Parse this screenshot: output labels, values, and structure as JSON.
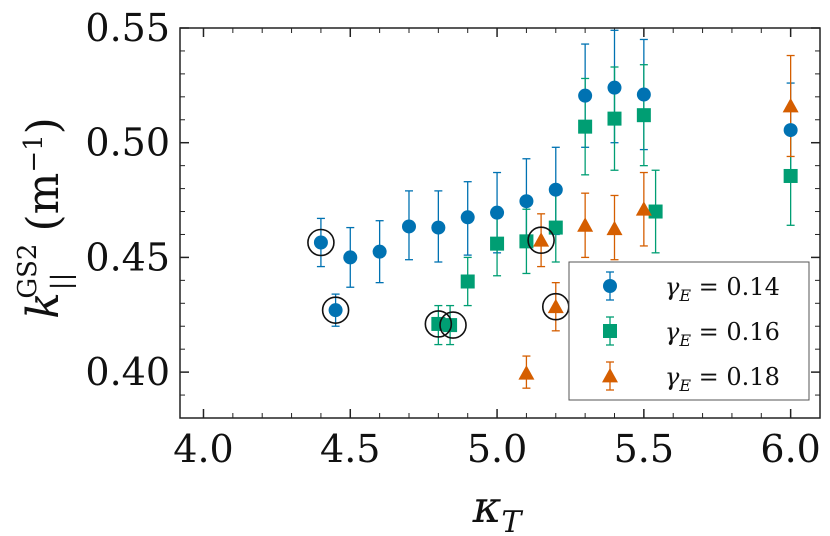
{
  "chart_data": {
    "type": "scatter",
    "title": "",
    "xlabel": {
      "base": "κ",
      "sub": "T"
    },
    "ylabel": {
      "base": "k",
      "sub": "||",
      "sup": "GS2",
      "unit_open": "(m",
      "unit_exp": "−1",
      "unit_close": ")"
    },
    "xlim": [
      3.92,
      6.1
    ],
    "ylim": [
      0.38,
      0.55
    ],
    "xticks": [
      "4.0",
      "4.5",
      "5.0",
      "5.5",
      "6.0"
    ],
    "xtick_values": [
      4.0,
      4.5,
      5.0,
      5.5,
      6.0
    ],
    "yticks": [
      "0.40",
      "0.45",
      "0.50",
      "0.55"
    ],
    "ytick_values": [
      0.4,
      0.45,
      0.5,
      0.55
    ],
    "legend_position": "bottom-right",
    "series": [
      {
        "name": "γ_E = 0.14",
        "legend_label": {
          "var": "γ",
          "sub": "E",
          "rest": " = 0.14"
        },
        "color": "#0072b2",
        "marker": "circle",
        "points": [
          {
            "x": 4.4,
            "y": 0.4565,
            "lo": 0.446,
            "hi": 0.467
          },
          {
            "x": 4.45,
            "y": 0.427,
            "lo": 0.42,
            "hi": 0.434
          },
          {
            "x": 4.5,
            "y": 0.45,
            "lo": 0.437,
            "hi": 0.463
          },
          {
            "x": 4.6,
            "y": 0.4525,
            "lo": 0.439,
            "hi": 0.466
          },
          {
            "x": 4.7,
            "y": 0.4635,
            "lo": 0.449,
            "hi": 0.479
          },
          {
            "x": 4.8,
            "y": 0.463,
            "lo": 0.448,
            "hi": 0.479
          },
          {
            "x": 4.9,
            "y": 0.4675,
            "lo": 0.451,
            "hi": 0.483
          },
          {
            "x": 5.0,
            "y": 0.4695,
            "lo": 0.452,
            "hi": 0.487
          },
          {
            "x": 5.1,
            "y": 0.4745,
            "lo": 0.456,
            "hi": 0.493
          },
          {
            "x": 5.2,
            "y": 0.4795,
            "lo": 0.46,
            "hi": 0.498
          },
          {
            "x": 5.3,
            "y": 0.5205,
            "lo": 0.498,
            "hi": 0.543
          },
          {
            "x": 5.4,
            "y": 0.524,
            "lo": 0.5,
            "hi": 0.549
          },
          {
            "x": 5.5,
            "y": 0.521,
            "lo": 0.497,
            "hi": 0.545
          },
          {
            "x": 6.0,
            "y": 0.5055,
            "lo": 0.486,
            "hi": 0.526
          }
        ]
      },
      {
        "name": "γ_E = 0.16",
        "legend_label": {
          "var": "γ",
          "sub": "E",
          "rest": " = 0.16"
        },
        "color": "#009e73",
        "marker": "square",
        "points": [
          {
            "x": 4.8,
            "y": 0.421,
            "lo": 0.412,
            "hi": 0.429
          },
          {
            "x": 4.84,
            "y": 0.4205,
            "lo": 0.412,
            "hi": 0.429
          },
          {
            "x": 4.9,
            "y": 0.4395,
            "lo": 0.429,
            "hi": 0.45
          },
          {
            "x": 5.0,
            "y": 0.456,
            "lo": 0.442,
            "hi": 0.47
          },
          {
            "x": 5.1,
            "y": 0.457,
            "lo": 0.443,
            "hi": 0.471
          },
          {
            "x": 5.2,
            "y": 0.463,
            "lo": 0.448,
            "hi": 0.478
          },
          {
            "x": 5.3,
            "y": 0.507,
            "lo": 0.486,
            "hi": 0.528
          },
          {
            "x": 5.4,
            "y": 0.5105,
            "lo": 0.488,
            "hi": 0.533
          },
          {
            "x": 5.5,
            "y": 0.512,
            "lo": 0.49,
            "hi": 0.534
          },
          {
            "x": 5.54,
            "y": 0.47,
            "lo": 0.452,
            "hi": 0.488
          },
          {
            "x": 6.0,
            "y": 0.4855,
            "lo": 0.464,
            "hi": 0.507
          }
        ]
      },
      {
        "name": "γ_E = 0.18",
        "legend_label": {
          "var": "γ",
          "sub": "E",
          "rest": " = 0.18"
        },
        "color": "#d55e00",
        "marker": "triangle",
        "points": [
          {
            "x": 5.1,
            "y": 0.3995,
            "lo": 0.393,
            "hi": 0.407
          },
          {
            "x": 5.15,
            "y": 0.4575,
            "lo": 0.446,
            "hi": 0.469
          },
          {
            "x": 5.2,
            "y": 0.4285,
            "lo": 0.418,
            "hi": 0.439
          },
          {
            "x": 5.3,
            "y": 0.464,
            "lo": 0.45,
            "hi": 0.478
          },
          {
            "x": 5.4,
            "y": 0.4625,
            "lo": 0.449,
            "hi": 0.477
          },
          {
            "x": 5.5,
            "y": 0.471,
            "lo": 0.455,
            "hi": 0.487
          },
          {
            "x": 6.0,
            "y": 0.516,
            "lo": 0.494,
            "hi": 0.538
          }
        ]
      }
    ],
    "annotations": [
      {
        "type": "open-circle",
        "x": 4.4,
        "y": 0.4565
      },
      {
        "type": "open-circle",
        "x": 4.45,
        "y": 0.427
      },
      {
        "type": "open-circle",
        "x": 4.8,
        "y": 0.421
      },
      {
        "type": "open-circle",
        "x": 4.85,
        "y": 0.4205
      },
      {
        "type": "open-circle",
        "x": 5.15,
        "y": 0.4575
      },
      {
        "type": "open-circle",
        "x": 5.2,
        "y": 0.4285
      }
    ]
  }
}
